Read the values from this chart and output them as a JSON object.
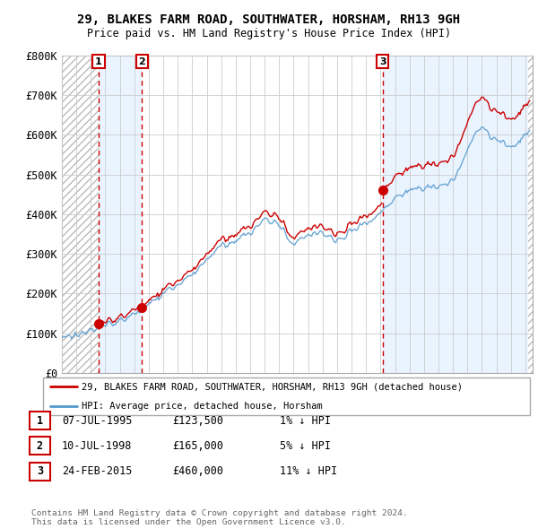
{
  "title": "29, BLAKES FARM ROAD, SOUTHWATER, HORSHAM, RH13 9GH",
  "subtitle": "Price paid vs. HM Land Registry's House Price Index (HPI)",
  "ylim": [
    0,
    800000
  ],
  "yticks": [
    0,
    100000,
    200000,
    300000,
    400000,
    500000,
    600000,
    700000,
    800000
  ],
  "ytick_labels": [
    "£0",
    "£100K",
    "£200K",
    "£300K",
    "£400K",
    "£500K",
    "£600K",
    "£700K",
    "£800K"
  ],
  "xlim_start": 1993.0,
  "xlim_end": 2025.5,
  "hpi_color": "#5599cc",
  "price_color": "#cc0000",
  "sale_years": [
    1995.54,
    1998.54,
    2015.15
  ],
  "sale_prices": [
    123500,
    165000,
    460000
  ],
  "sale_labels": [
    "1",
    "2",
    "3"
  ],
  "legend_entries": [
    "29, BLAKES FARM ROAD, SOUTHWATER, HORSHAM, RH13 9GH (detached house)",
    "HPI: Average price, detached house, Horsham"
  ],
  "table_rows": [
    {
      "num": "1",
      "date": "07-JUL-1995",
      "price": "£123,500",
      "hpi": "1% ↓ HPI"
    },
    {
      "num": "2",
      "date": "10-JUL-1998",
      "price": "£165,000",
      "hpi": "5% ↓ HPI"
    },
    {
      "num": "3",
      "date": "24-FEB-2015",
      "price": "£460,000",
      "hpi": "11% ↓ HPI"
    }
  ],
  "footnote": "Contains HM Land Registry data © Crown copyright and database right 2024.\nThis data is licensed under the Open Government Licence v3.0.",
  "grid_color": "#cccccc",
  "hatch_color": "#bbbbbb",
  "shade_color": "#ddeeff"
}
